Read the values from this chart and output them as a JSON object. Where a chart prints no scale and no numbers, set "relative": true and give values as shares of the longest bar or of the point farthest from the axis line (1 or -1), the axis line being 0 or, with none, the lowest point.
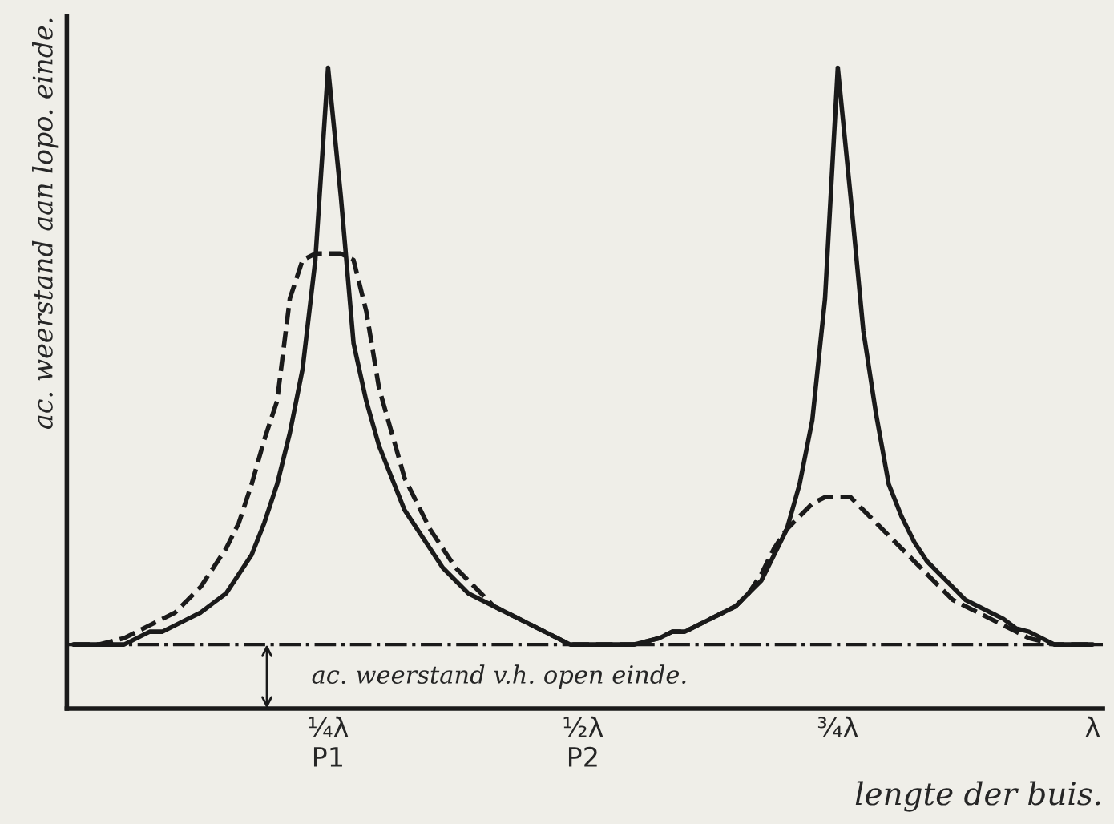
{
  "chart_data": {
    "type": "line",
    "relative": true,
    "xlabel": "lengte der buis.",
    "ylabel": "ac. weerstand aan lopo. einde.",
    "categories": [
      null,
      null,
      null,
      null,
      null,
      null,
      null,
      null,
      null,
      null,
      null,
      null,
      null,
      null,
      null,
      null,
      null,
      null,
      null,
      null,
      "¼λ\nP1",
      null,
      null,
      null,
      null,
      null,
      null,
      null,
      null,
      null,
      null,
      null,
      null,
      null,
      null,
      null,
      null,
      null,
      null,
      null,
      "½λ\nP2",
      null,
      null,
      null,
      null,
      null,
      null,
      null,
      null,
      null,
      null,
      null,
      null,
      null,
      null,
      null,
      null,
      null,
      null,
      null,
      "¾λ",
      null,
      null,
      null,
      null,
      null,
      null,
      null,
      null,
      null,
      null,
      null,
      null,
      null,
      null,
      null,
      null,
      null,
      null,
      null,
      "λ"
    ],
    "series": [
      {
        "color": "#1a1a1a",
        "line_style": "solid",
        "values": [
          0.1,
          0.1,
          0.1,
          0.1,
          0.1,
          0.11,
          0.12,
          0.12,
          0.13,
          0.14,
          0.15,
          0.165,
          0.18,
          0.21,
          0.24,
          0.29,
          0.35,
          0.43,
          0.53,
          0.7,
          1.0,
          0.8,
          0.57,
          0.48,
          0.41,
          0.36,
          0.31,
          0.28,
          0.25,
          0.22,
          0.2,
          0.18,
          0.17,
          0.16,
          0.15,
          0.14,
          0.13,
          0.12,
          0.11,
          0.1,
          0.1,
          0.1,
          0.1,
          0.1,
          0.1,
          0.105,
          0.11,
          0.12,
          0.12,
          0.13,
          0.14,
          0.15,
          0.16,
          0.18,
          0.2,
          0.24,
          0.28,
          0.35,
          0.45,
          0.64,
          1.0,
          0.8,
          0.59,
          0.46,
          0.35,
          0.3,
          0.26,
          0.23,
          0.21,
          0.19,
          0.17,
          0.16,
          0.15,
          0.14,
          0.125,
          0.12,
          0.11,
          0.1,
          0.1,
          0.1,
          0.1
        ]
      },
      {
        "color": "#1a1a1a",
        "line_style": "dashed",
        "values": [
          0.1,
          0.1,
          0.1,
          0.105,
          0.11,
          0.12,
          0.13,
          0.14,
          0.15,
          0.17,
          0.19,
          0.22,
          0.25,
          0.29,
          0.35,
          0.42,
          0.48,
          0.64,
          0.7,
          0.71,
          0.71,
          0.71,
          0.7,
          0.62,
          0.5,
          0.43,
          0.36,
          0.32,
          0.28,
          0.25,
          0.22,
          0.2,
          0.18,
          0.16,
          0.15,
          0.14,
          0.13,
          0.12,
          0.11,
          0.1,
          0.1,
          0.1,
          0.1,
          0.1,
          0.1,
          0.105,
          0.11,
          0.12,
          0.12,
          0.13,
          0.14,
          0.15,
          0.16,
          0.18,
          0.21,
          0.25,
          0.28,
          0.3,
          0.32,
          0.33,
          0.33,
          0.33,
          0.31,
          0.29,
          0.27,
          0.25,
          0.23,
          0.21,
          0.19,
          0.17,
          0.16,
          0.15,
          0.14,
          0.13,
          0.12,
          0.11,
          0.105,
          0.1,
          0.1,
          0.1,
          0.1
        ]
      }
    ],
    "ref_lines": [
      {
        "axis": "y",
        "value": 0.1,
        "label": "ac. weerstand v.h. open einde.",
        "line_style": "dashdot",
        "color": "#1a1a1a"
      }
    ],
    "grid": false,
    "legend": false
  }
}
